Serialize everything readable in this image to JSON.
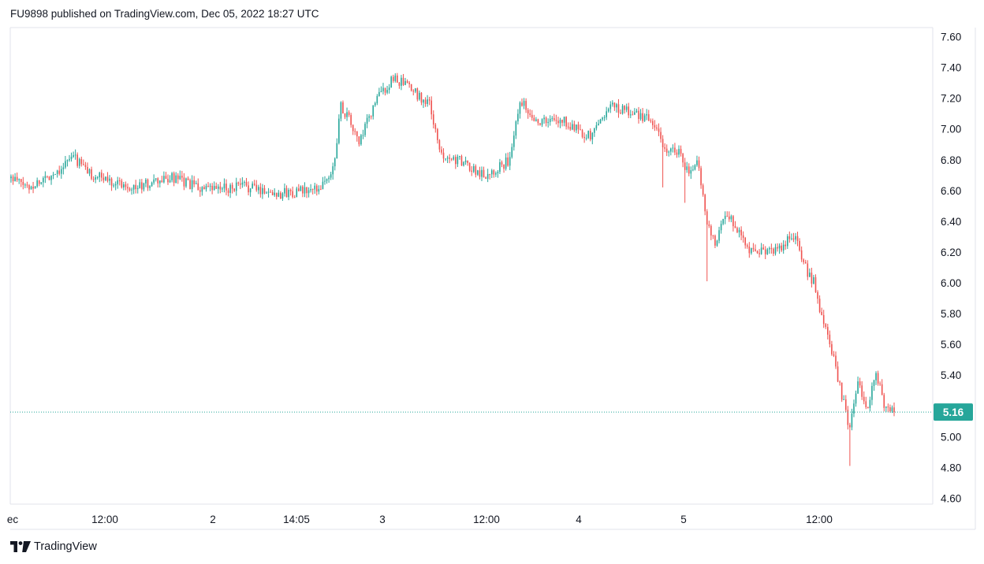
{
  "header": {
    "publish_line": "FU9898 published on TradingView.com, Dec 05, 2022 18:27 UTC"
  },
  "footer": {
    "brand": "TradingView",
    "logo_icon": "tradingview-logo-icon"
  },
  "colors": {
    "up": "#26a69a",
    "down": "#ef5350",
    "last_price_badge": "#26a69a",
    "last_price_line": "#26a69a",
    "axis_text": "#131722"
  },
  "chart_data": {
    "type": "candlestick",
    "title": "",
    "ylim": [
      4.6,
      7.6
    ],
    "y_ticks": [
      "7.60",
      "7.40",
      "7.20",
      "7.00",
      "6.80",
      "6.60",
      "6.40",
      "6.20",
      "6.00",
      "5.80",
      "5.60",
      "5.40",
      "5.20",
      "5.00",
      "4.80",
      "4.60"
    ],
    "x_ticks": [
      "ec",
      "12:00",
      "2",
      "14:05",
      "3",
      "12:00",
      "4",
      "5",
      "12:00"
    ],
    "last_price": {
      "value": 5.16,
      "label": "5.16"
    },
    "grid": false,
    "price_path": [
      {
        "t": 0,
        "p": 6.68
      },
      {
        "t": 2,
        "p": 6.62
      },
      {
        "t": 5,
        "p": 6.72
      },
      {
        "t": 7,
        "p": 6.82
      },
      {
        "t": 9,
        "p": 6.7
      },
      {
        "t": 14,
        "p": 6.62
      },
      {
        "t": 18,
        "p": 6.68
      },
      {
        "t": 22,
        "p": 6.6
      },
      {
        "t": 26,
        "p": 6.63
      },
      {
        "t": 30,
        "p": 6.58
      },
      {
        "t": 34,
        "p": 6.6
      },
      {
        "t": 36,
        "p": 6.7
      },
      {
        "t": 37,
        "p": 7.15
      },
      {
        "t": 38,
        "p": 7.05
      },
      {
        "t": 39,
        "p": 6.9
      },
      {
        "t": 41,
        "p": 7.2
      },
      {
        "t": 43,
        "p": 7.33
      },
      {
        "t": 45,
        "p": 7.25
      },
      {
        "t": 47,
        "p": 7.15
      },
      {
        "t": 48,
        "p": 6.85
      },
      {
        "t": 50,
        "p": 6.8
      },
      {
        "t": 53,
        "p": 6.7
      },
      {
        "t": 56,
        "p": 6.8
      },
      {
        "t": 57,
        "p": 7.2
      },
      {
        "t": 59,
        "p": 7.05
      },
      {
        "t": 62,
        "p": 7.05
      },
      {
        "t": 65,
        "p": 6.95
      },
      {
        "t": 67,
        "p": 7.15
      },
      {
        "t": 70,
        "p": 7.1
      },
      {
        "t": 72,
        "p": 7.05
      },
      {
        "t": 73,
        "p": 6.88
      },
      {
        "t": 75,
        "p": 6.85
      },
      {
        "t": 76,
        "p": 6.7
      },
      {
        "t": 77,
        "p": 6.78
      },
      {
        "t": 78,
        "p": 6.4
      },
      {
        "t": 79,
        "p": 6.25
      },
      {
        "t": 80,
        "p": 6.45
      },
      {
        "t": 81,
        "p": 6.4
      },
      {
        "t": 83,
        "p": 6.2
      },
      {
        "t": 86,
        "p": 6.22
      },
      {
        "t": 88,
        "p": 6.33
      },
      {
        "t": 89,
        "p": 6.1
      },
      {
        "t": 90,
        "p": 6.0
      },
      {
        "t": 91,
        "p": 5.75
      },
      {
        "t": 92,
        "p": 5.55
      },
      {
        "t": 93,
        "p": 5.3
      },
      {
        "t": 94,
        "p": 5.05
      },
      {
        "t": 95,
        "p": 5.35
      },
      {
        "t": 96,
        "p": 5.2
      },
      {
        "t": 97,
        "p": 5.4
      },
      {
        "t": 98,
        "p": 5.18
      },
      {
        "t": 99,
        "p": 5.16
      }
    ],
    "spike_lows": [
      {
        "t": 73,
        "low": 6.62
      },
      {
        "t": 75.5,
        "low": 6.52
      },
      {
        "t": 78,
        "low": 6.01
      },
      {
        "t": 94,
        "low": 4.81
      }
    ]
  }
}
